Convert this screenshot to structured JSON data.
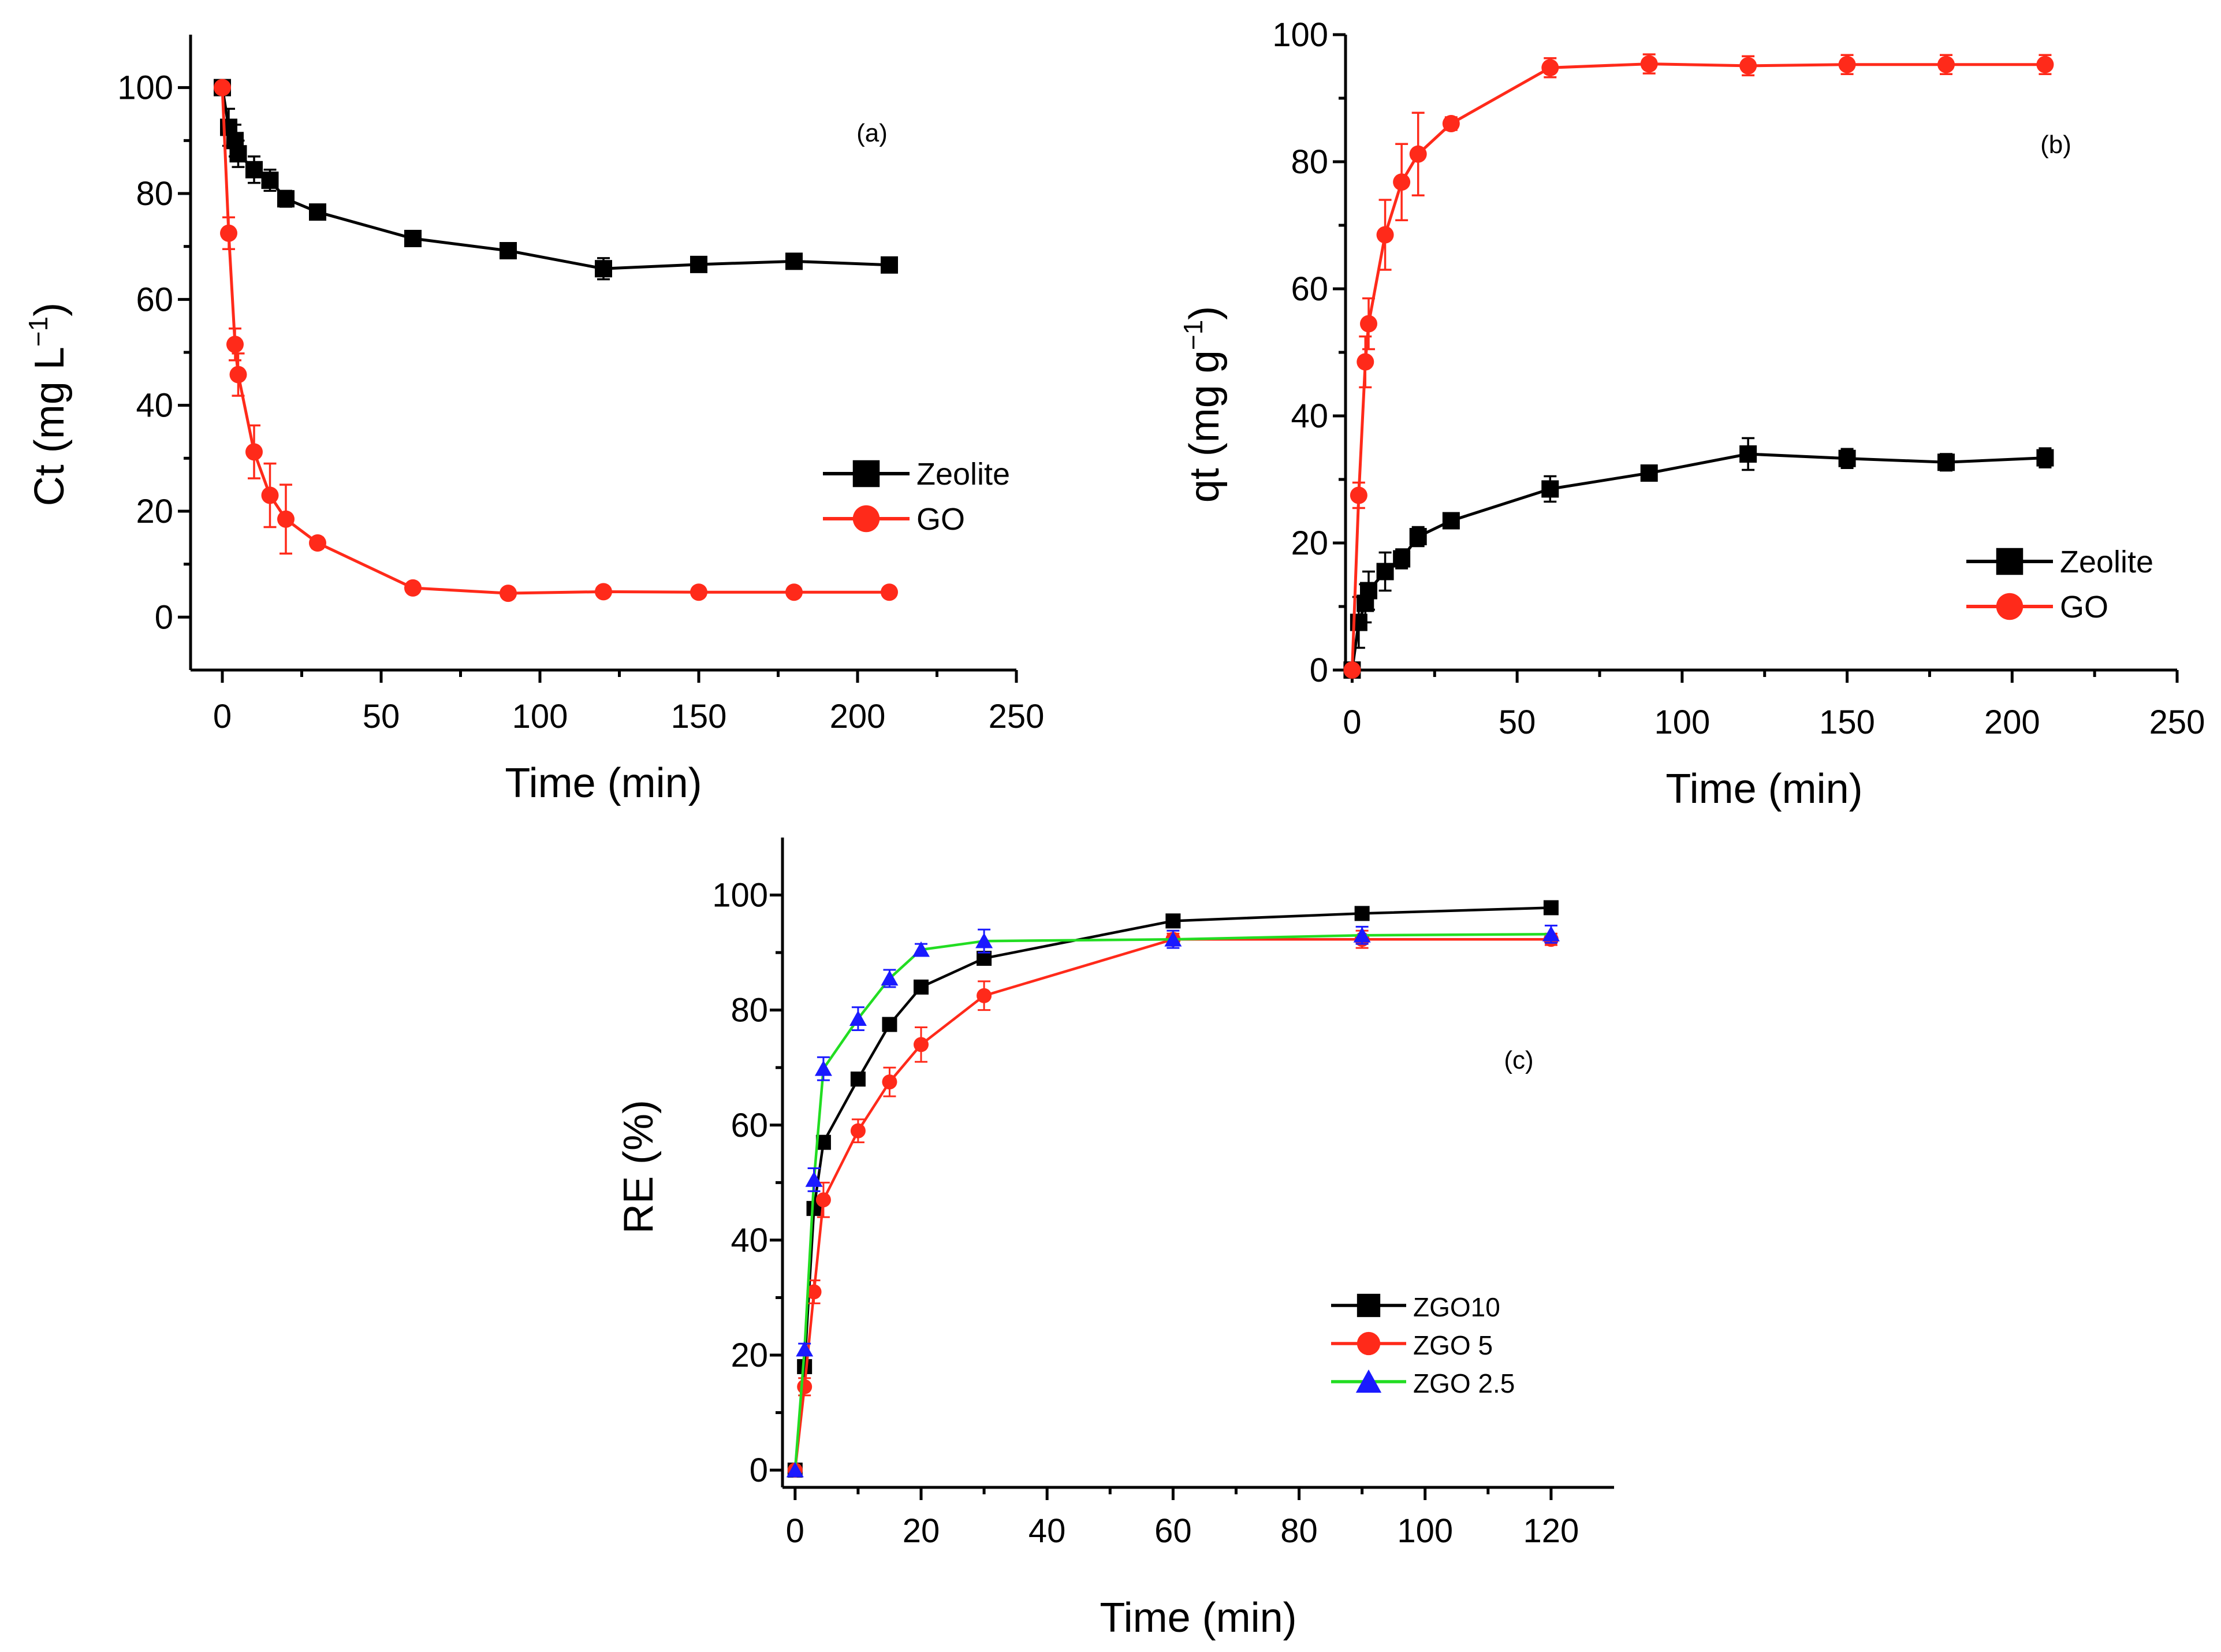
{
  "figure": {
    "panels": [
      "a",
      "b",
      "c"
    ]
  },
  "chart_data": [
    {
      "id": "a",
      "type": "line",
      "panel_label": "(a)",
      "xlabel": "Time (min)",
      "ylabel": "Ct (mg L",
      "ylabel_sup": "−1",
      "ylabel_close": ")",
      "xlim": [
        -10,
        250
      ],
      "ylim": [
        -10,
        110
      ],
      "xticks": [
        0,
        50,
        100,
        150,
        200,
        250
      ],
      "yticks": [
        0,
        20,
        40,
        60,
        80,
        100
      ],
      "legend_position": "center-right",
      "series": [
        {
          "name": "Zeolite",
          "color": "#000000",
          "marker": "square",
          "x": [
            0,
            2,
            4,
            5,
            10,
            15,
            20,
            30,
            60,
            90,
            120,
            150,
            180,
            210
          ],
          "y": [
            100,
            92.5,
            90,
            87.5,
            84.5,
            82.5,
            79,
            76.5,
            71.5,
            69.2,
            65.8,
            66.6,
            67.2,
            66.5
          ],
          "err": [
            0,
            3.5,
            3,
            2.5,
            2.5,
            2,
            1.5,
            1,
            1,
            1,
            2,
            1,
            1,
            1
          ]
        },
        {
          "name": "GO",
          "color": "#ff2a1a",
          "marker": "circle",
          "x": [
            0,
            2,
            4,
            5,
            10,
            15,
            20,
            30,
            60,
            90,
            120,
            150,
            180,
            210
          ],
          "y": [
            100,
            72.5,
            51.5,
            45.8,
            31.2,
            23,
            18.5,
            14,
            5.5,
            4.5,
            4.8,
            4.7,
            4.7,
            4.7
          ],
          "err": [
            0,
            3,
            3,
            4,
            5,
            6,
            6.5,
            1,
            0.5,
            0.5,
            0.5,
            0.5,
            0.5,
            0.5
          ]
        }
      ]
    },
    {
      "id": "b",
      "type": "line",
      "panel_label": "(b)",
      "xlabel": "Time (min)",
      "ylabel": "qt (mg g",
      "ylabel_sup": "−1",
      "ylabel_close": ")",
      "xlim": [
        -2,
        250
      ],
      "ylim": [
        0,
        100
      ],
      "xticks": [
        0,
        50,
        100,
        150,
        200,
        250
      ],
      "yticks": [
        0,
        20,
        40,
        60,
        80,
        100
      ],
      "legend_position": "bottom-right",
      "series": [
        {
          "name": "Zeolite",
          "color": "#000000",
          "marker": "square",
          "x": [
            0,
            2,
            4,
            5,
            10,
            15,
            20,
            30,
            60,
            90,
            120,
            150,
            180,
            210
          ],
          "y": [
            0,
            7.5,
            10.5,
            12.5,
            15.5,
            17.5,
            21,
            23.5,
            28.5,
            31,
            34,
            33.3,
            32.7,
            33.4
          ],
          "err": [
            0,
            4,
            3,
            3,
            3,
            1.5,
            1.5,
            1,
            2,
            1.2,
            2.5,
            1.5,
            1.3,
            1.5
          ]
        },
        {
          "name": "GO",
          "color": "#ff2a1a",
          "marker": "circle",
          "x": [
            0,
            2,
            4,
            5,
            10,
            15,
            20,
            30,
            60,
            90,
            120,
            150,
            180,
            210
          ],
          "y": [
            0,
            27.5,
            48.5,
            54.5,
            68.5,
            76.8,
            81.2,
            86,
            94.8,
            95.4,
            95.1,
            95.3,
            95.3,
            95.3
          ],
          "err": [
            0,
            2,
            4,
            4,
            5.5,
            6,
            6.5,
            1,
            1.5,
            1.5,
            1.5,
            1.5,
            1.5,
            1.5
          ]
        }
      ]
    },
    {
      "id": "c",
      "type": "line",
      "panel_label": "(c)",
      "xlabel": "Time (min)",
      "ylabel": "RE (%)",
      "xlim": [
        -2,
        130
      ],
      "ylim": [
        -3,
        110
      ],
      "xticks": [
        0,
        20,
        40,
        60,
        80,
        100,
        120
      ],
      "yticks": [
        0,
        20,
        40,
        60,
        80,
        100
      ],
      "legend_position": "bottom-right",
      "series": [
        {
          "name": "ZGO10",
          "color": "#000000",
          "line_color": "#000000",
          "marker": "square",
          "x": [
            0,
            1.5,
            3,
            4.5,
            10,
            15,
            20,
            30,
            60,
            90,
            120
          ],
          "y": [
            0,
            18,
            45.5,
            57,
            68,
            77.5,
            84,
            89,
            95.5,
            96.8,
            97.8
          ],
          "err": [
            0,
            1,
            1,
            1,
            1,
            1,
            1,
            1,
            1,
            0.8,
            0.8
          ]
        },
        {
          "name": "ZGO 5",
          "color": "#ff2a1a",
          "line_color": "#ff2a1a",
          "marker": "circle",
          "x": [
            0,
            1.5,
            3,
            4.5,
            10,
            15,
            20,
            30,
            60,
            90,
            120
          ],
          "y": [
            0,
            14.5,
            31,
            47,
            59,
            67.5,
            74,
            82.5,
            92.3,
            92.3,
            92.3
          ],
          "err": [
            0,
            1.5,
            2,
            3,
            2,
            2.5,
            3,
            2.5,
            1,
            1.5,
            1
          ]
        },
        {
          "name": "ZGO 2.5",
          "color": "#1a1aff",
          "line_color": "#22dd22",
          "marker": "triangle",
          "x": [
            0,
            1.5,
            3,
            4.5,
            10,
            15,
            20,
            30,
            60,
            90,
            120
          ],
          "y": [
            0,
            21,
            50.5,
            69.8,
            78.5,
            85.5,
            90.5,
            92,
            92.3,
            93,
            93.2
          ],
          "err": [
            0,
            1,
            2,
            2,
            2,
            1.5,
            1,
            2,
            1.5,
            1.5,
            1.5
          ]
        }
      ]
    }
  ]
}
